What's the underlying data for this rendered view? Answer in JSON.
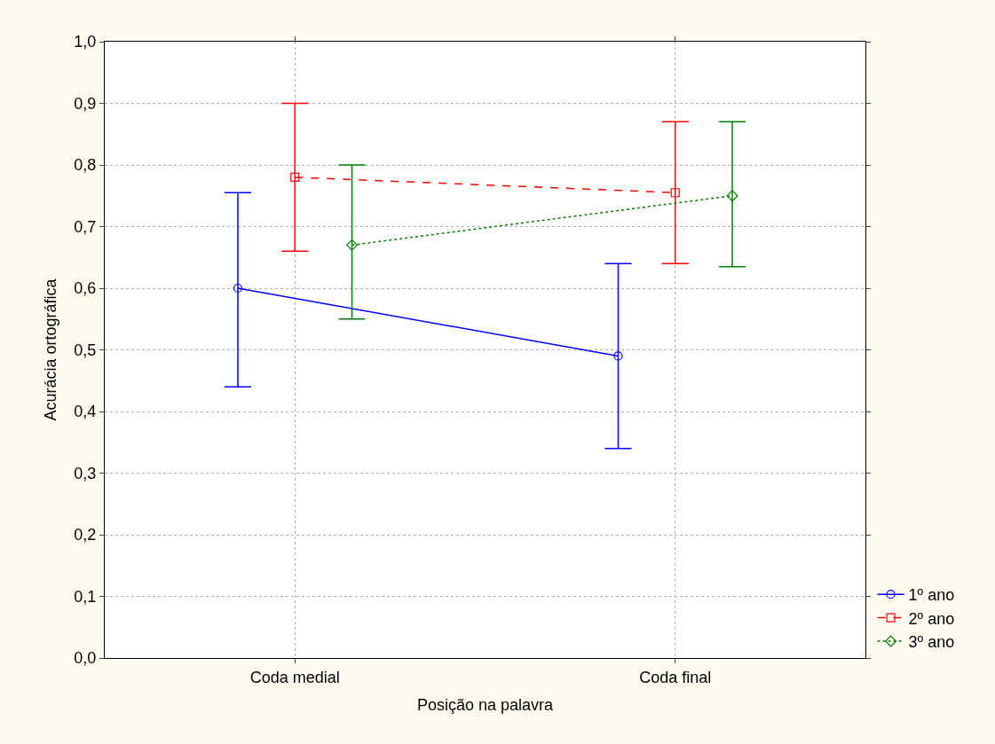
{
  "chart_data": {
    "type": "line",
    "xlabel": "Posição na palavra",
    "ylabel": "Acurácia ortográfica",
    "categories": [
      "Coda medial",
      "Coda final"
    ],
    "series": [
      {
        "name": "1º ano",
        "color": "#0000ff",
        "values": [
          0.6,
          0.49
        ],
        "errors": [
          [
            0.44,
            0.755
          ],
          [
            0.34,
            0.64
          ]
        ],
        "marker": "circle",
        "line_style": "solid"
      },
      {
        "name": "2º ano",
        "color": "#ff0000",
        "values": [
          0.78,
          0.755
        ],
        "errors": [
          [
            0.66,
            0.9
          ],
          [
            0.64,
            0.87
          ]
        ],
        "marker": "square",
        "line_style": "dashed"
      },
      {
        "name": "3º ano",
        "color": "#008000",
        "values": [
          0.67,
          0.75
        ],
        "errors": [
          [
            0.55,
            0.8
          ],
          [
            0.635,
            0.87
          ]
        ],
        "marker": "diamond",
        "line_style": "dotted"
      }
    ],
    "ylim": [
      0,
      1
    ],
    "yticks": [
      {
        "value": 0,
        "label": "0,0"
      },
      {
        "value": 0.1,
        "label": "0,1"
      },
      {
        "value": 0.2,
        "label": "0,2"
      },
      {
        "value": 0.3,
        "label": "0,3"
      },
      {
        "value": 0.4,
        "label": "0,4"
      },
      {
        "value": 0.5,
        "label": "0,5"
      },
      {
        "value": 0.6,
        "label": "0,6"
      },
      {
        "value": 0.7,
        "label": "0,7"
      },
      {
        "value": 0.8,
        "label": "0,8"
      },
      {
        "value": 0.9,
        "label": "0,9"
      },
      {
        "value": 1,
        "label": "1,0"
      }
    ],
    "grid": true,
    "legend": "bottom right"
  }
}
